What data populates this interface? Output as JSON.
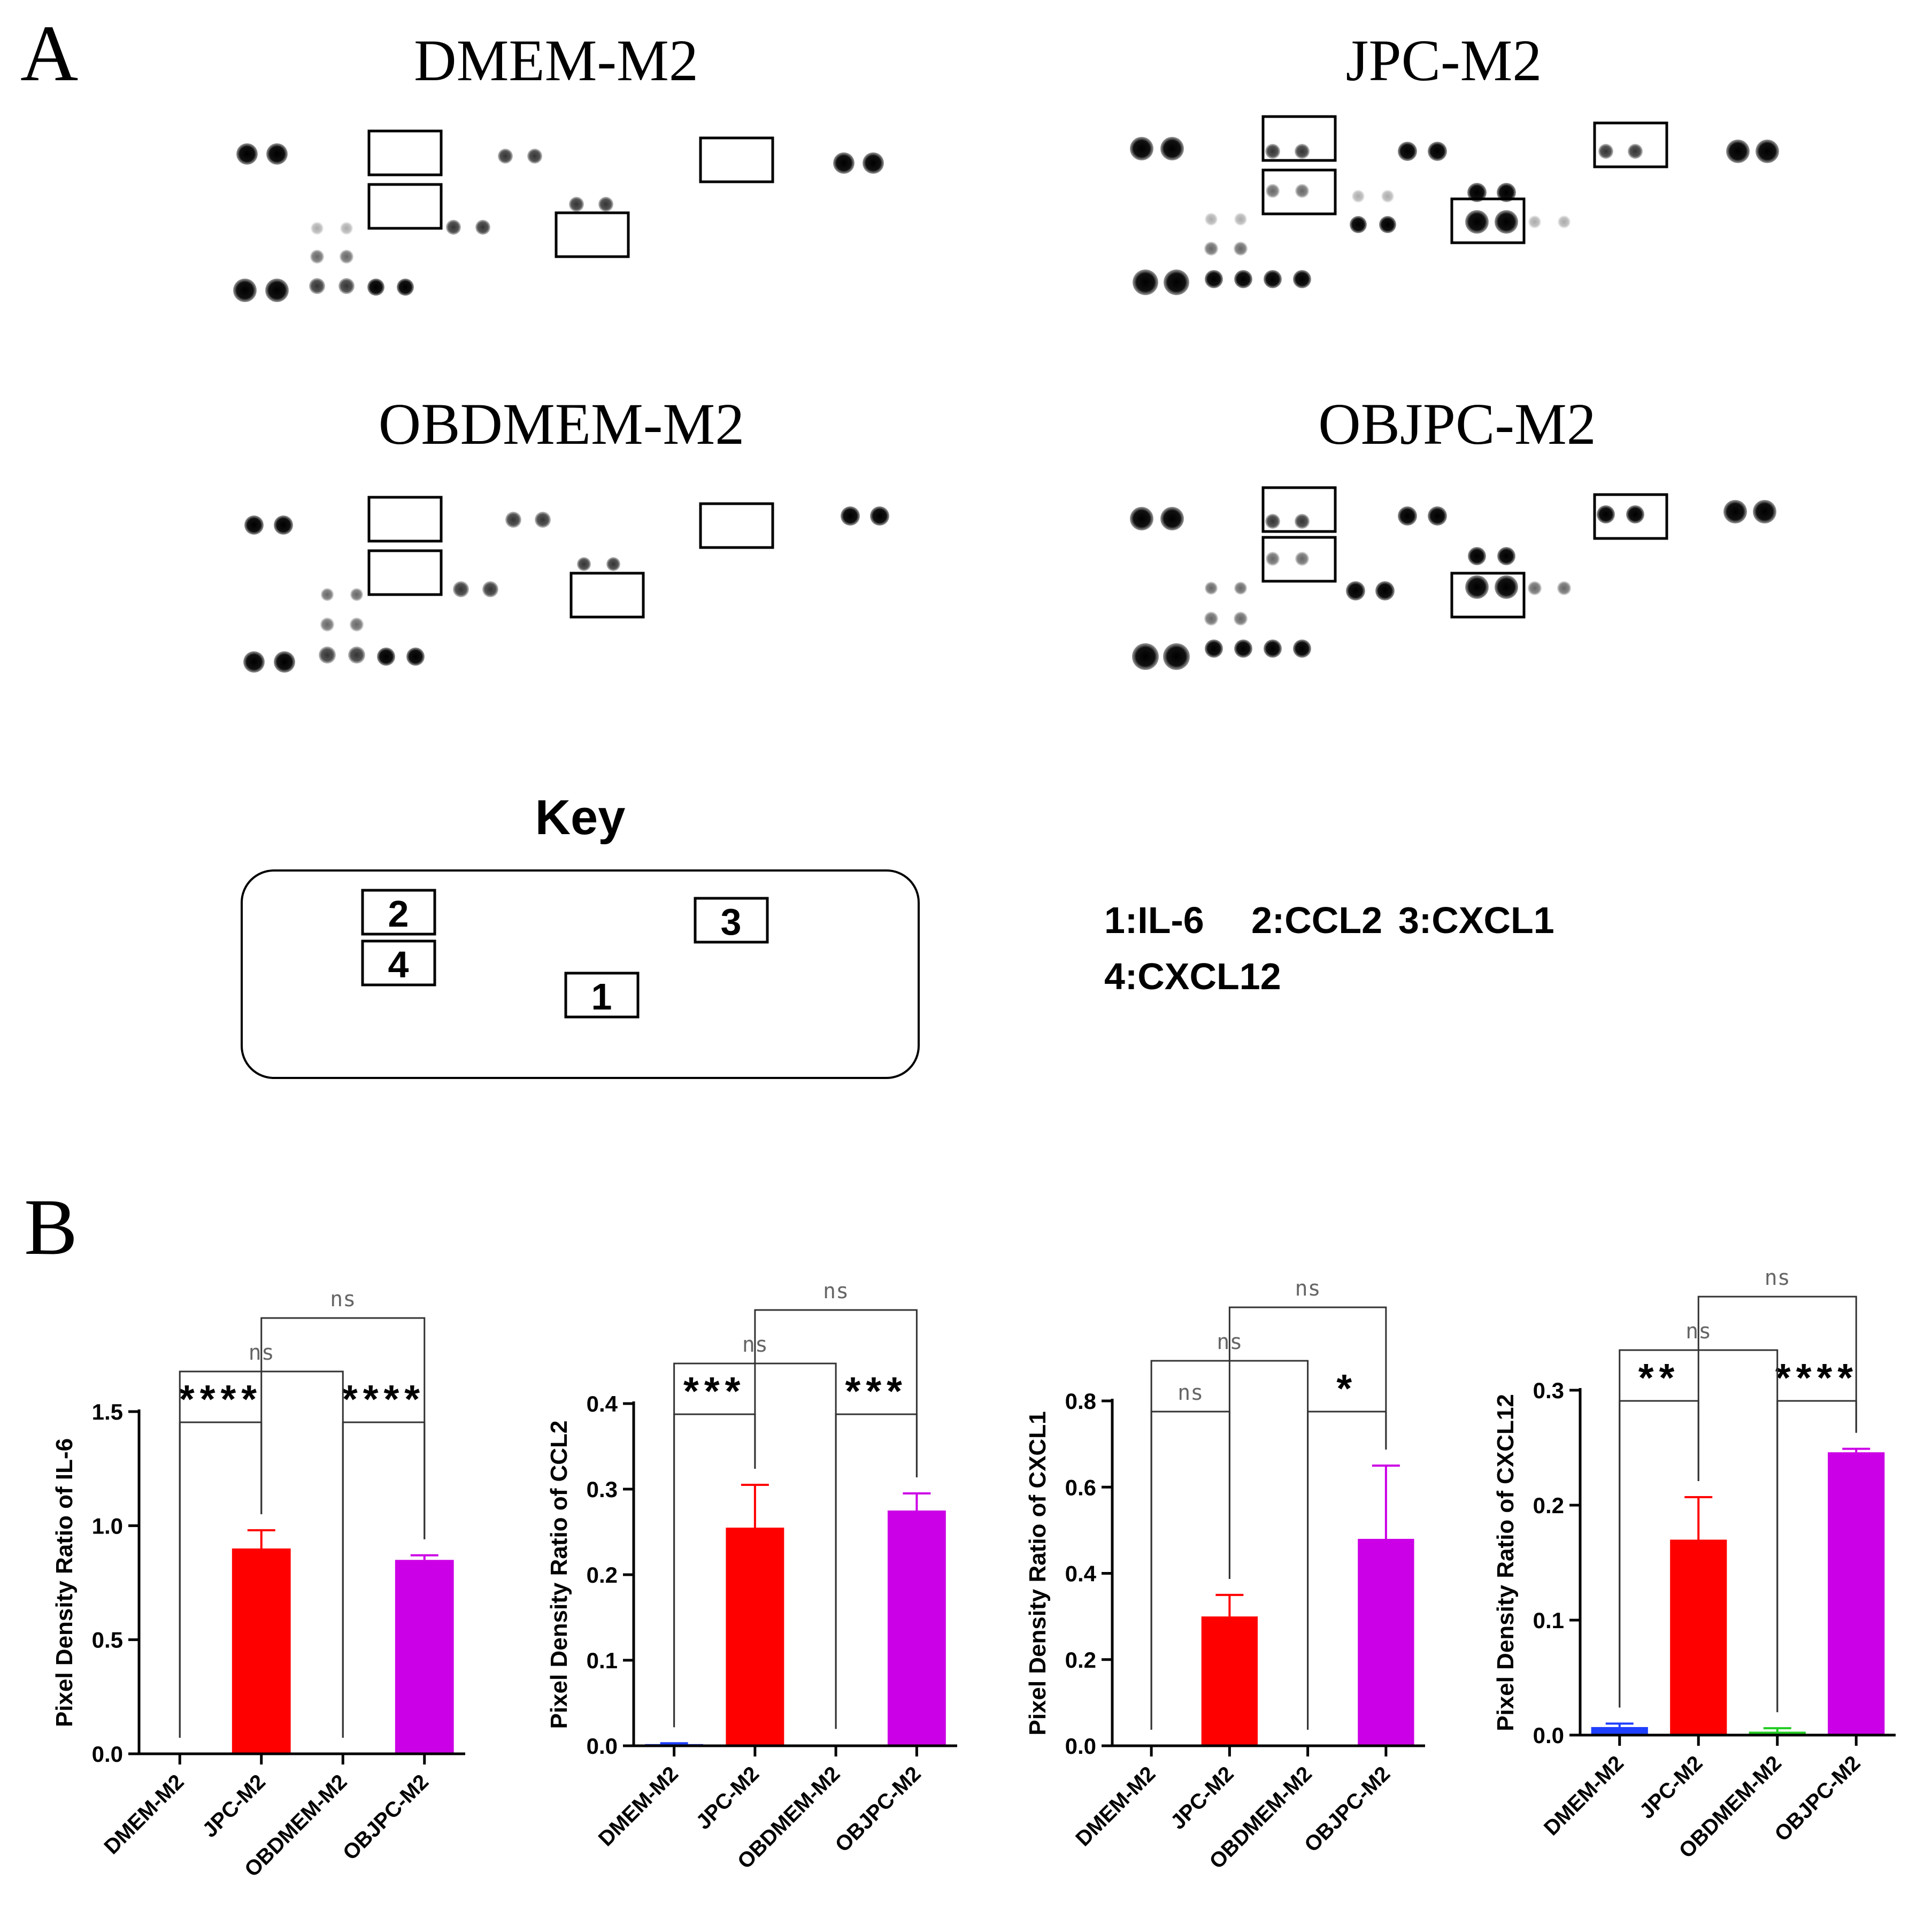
{
  "panel_labels": {
    "a": "A",
    "b": "B"
  },
  "arrays": [
    {
      "title": "DMEM-M2"
    },
    {
      "title": "JPC-M2"
    },
    {
      "title": "OBDMEM-M2"
    },
    {
      "title": "OBJPC-M2"
    }
  ],
  "key": {
    "title": "Key",
    "box_labels": [
      "2",
      "4",
      "1",
      "3"
    ],
    "legend_line1": [
      "1:IL-6",
      "2:CCL2",
      "3:CXCL1"
    ],
    "legend_line2": [
      "4:CXCL12"
    ]
  },
  "colors": {
    "DMEM-M2": "#1f3fff",
    "JPC-M2": "#ff0000",
    "OBDMEM-M2": "#22cc22",
    "OBJPC-M2": "#cc00e6",
    "axis": "#000000",
    "bracket": "#333333",
    "ns_text": "#666666"
  },
  "chart_data": [
    {
      "type": "bar",
      "categories": [
        "DMEM-M2",
        "JPC-M2",
        "OBDMEM-M2",
        "OBJPC-M2"
      ],
      "values": [
        0.0,
        0.9,
        0.0,
        0.85
      ],
      "errors": [
        0.0,
        0.08,
        0.0,
        0.02
      ],
      "ylabel": "Pixel Density Ratio of IL-6",
      "ylim": [
        0,
        1.5
      ],
      "yticks": [
        "0.0",
        "0.5",
        "1.0",
        "1.5"
      ],
      "comparisons": [
        {
          "pair": [
            0,
            1
          ],
          "label": "****",
          "level": 1
        },
        {
          "pair": [
            2,
            3
          ],
          "label": "****",
          "level": 1
        },
        {
          "pair": [
            0,
            2
          ],
          "label": "ns",
          "level": 2
        },
        {
          "pair": [
            1,
            3
          ],
          "label": "ns",
          "level": 3
        }
      ]
    },
    {
      "type": "bar",
      "categories": [
        "DMEM-M2",
        "JPC-M2",
        "OBDMEM-M2",
        "OBJPC-M2"
      ],
      "values": [
        0.002,
        0.255,
        0.001,
        0.275
      ],
      "errors": [
        0.001,
        0.05,
        0.0,
        0.02
      ],
      "ylabel": "Pixel Density Ratio of CCL2",
      "ylim": [
        0,
        0.4
      ],
      "yticks": [
        "0.0",
        "0.1",
        "0.2",
        "0.3",
        "0.4"
      ],
      "comparisons": [
        {
          "pair": [
            0,
            1
          ],
          "label": "***",
          "level": 1
        },
        {
          "pair": [
            2,
            3
          ],
          "label": "***",
          "level": 1
        },
        {
          "pair": [
            0,
            2
          ],
          "label": "ns",
          "level": 2
        },
        {
          "pair": [
            1,
            3
          ],
          "label": "ns",
          "level": 3
        }
      ]
    },
    {
      "type": "bar",
      "categories": [
        "DMEM-M2",
        "JPC-M2",
        "OBDMEM-M2",
        "OBJPC-M2"
      ],
      "values": [
        0.0,
        0.3,
        0.0,
        0.48
      ],
      "errors": [
        0.0,
        0.05,
        0.0,
        0.17
      ],
      "ylabel": "Pixel Density Ratio of CXCL1",
      "ylim": [
        0,
        0.8
      ],
      "yticks": [
        "0.0",
        "0.2",
        "0.4",
        "0.6",
        "0.8"
      ],
      "comparisons": [
        {
          "pair": [
            0,
            1
          ],
          "label": "ns",
          "level": 1
        },
        {
          "pair": [
            2,
            3
          ],
          "label": "*",
          "level": 1
        },
        {
          "pair": [
            0,
            2
          ],
          "label": "ns",
          "level": 2
        },
        {
          "pair": [
            1,
            3
          ],
          "label": "ns",
          "level": 3
        }
      ]
    },
    {
      "type": "bar",
      "categories": [
        "DMEM-M2",
        "JPC-M2",
        "OBDMEM-M2",
        "OBJPC-M2"
      ],
      "values": [
        0.007,
        0.17,
        0.003,
        0.246
      ],
      "errors": [
        0.003,
        0.037,
        0.003,
        0.003
      ],
      "ylabel": "Pixel Density Ratio of CXCL12",
      "ylim": [
        0,
        0.3
      ],
      "yticks": [
        "0.0",
        "0.1",
        "0.2",
        "0.3"
      ],
      "comparisons": [
        {
          "pair": [
            0,
            1
          ],
          "label": "**",
          "level": 1
        },
        {
          "pair": [
            2,
            3
          ],
          "label": "****",
          "level": 1
        },
        {
          "pair": [
            0,
            2
          ],
          "label": "ns",
          "level": 2
        },
        {
          "pair": [
            1,
            3
          ],
          "label": "ns",
          "level": 3
        }
      ]
    }
  ]
}
